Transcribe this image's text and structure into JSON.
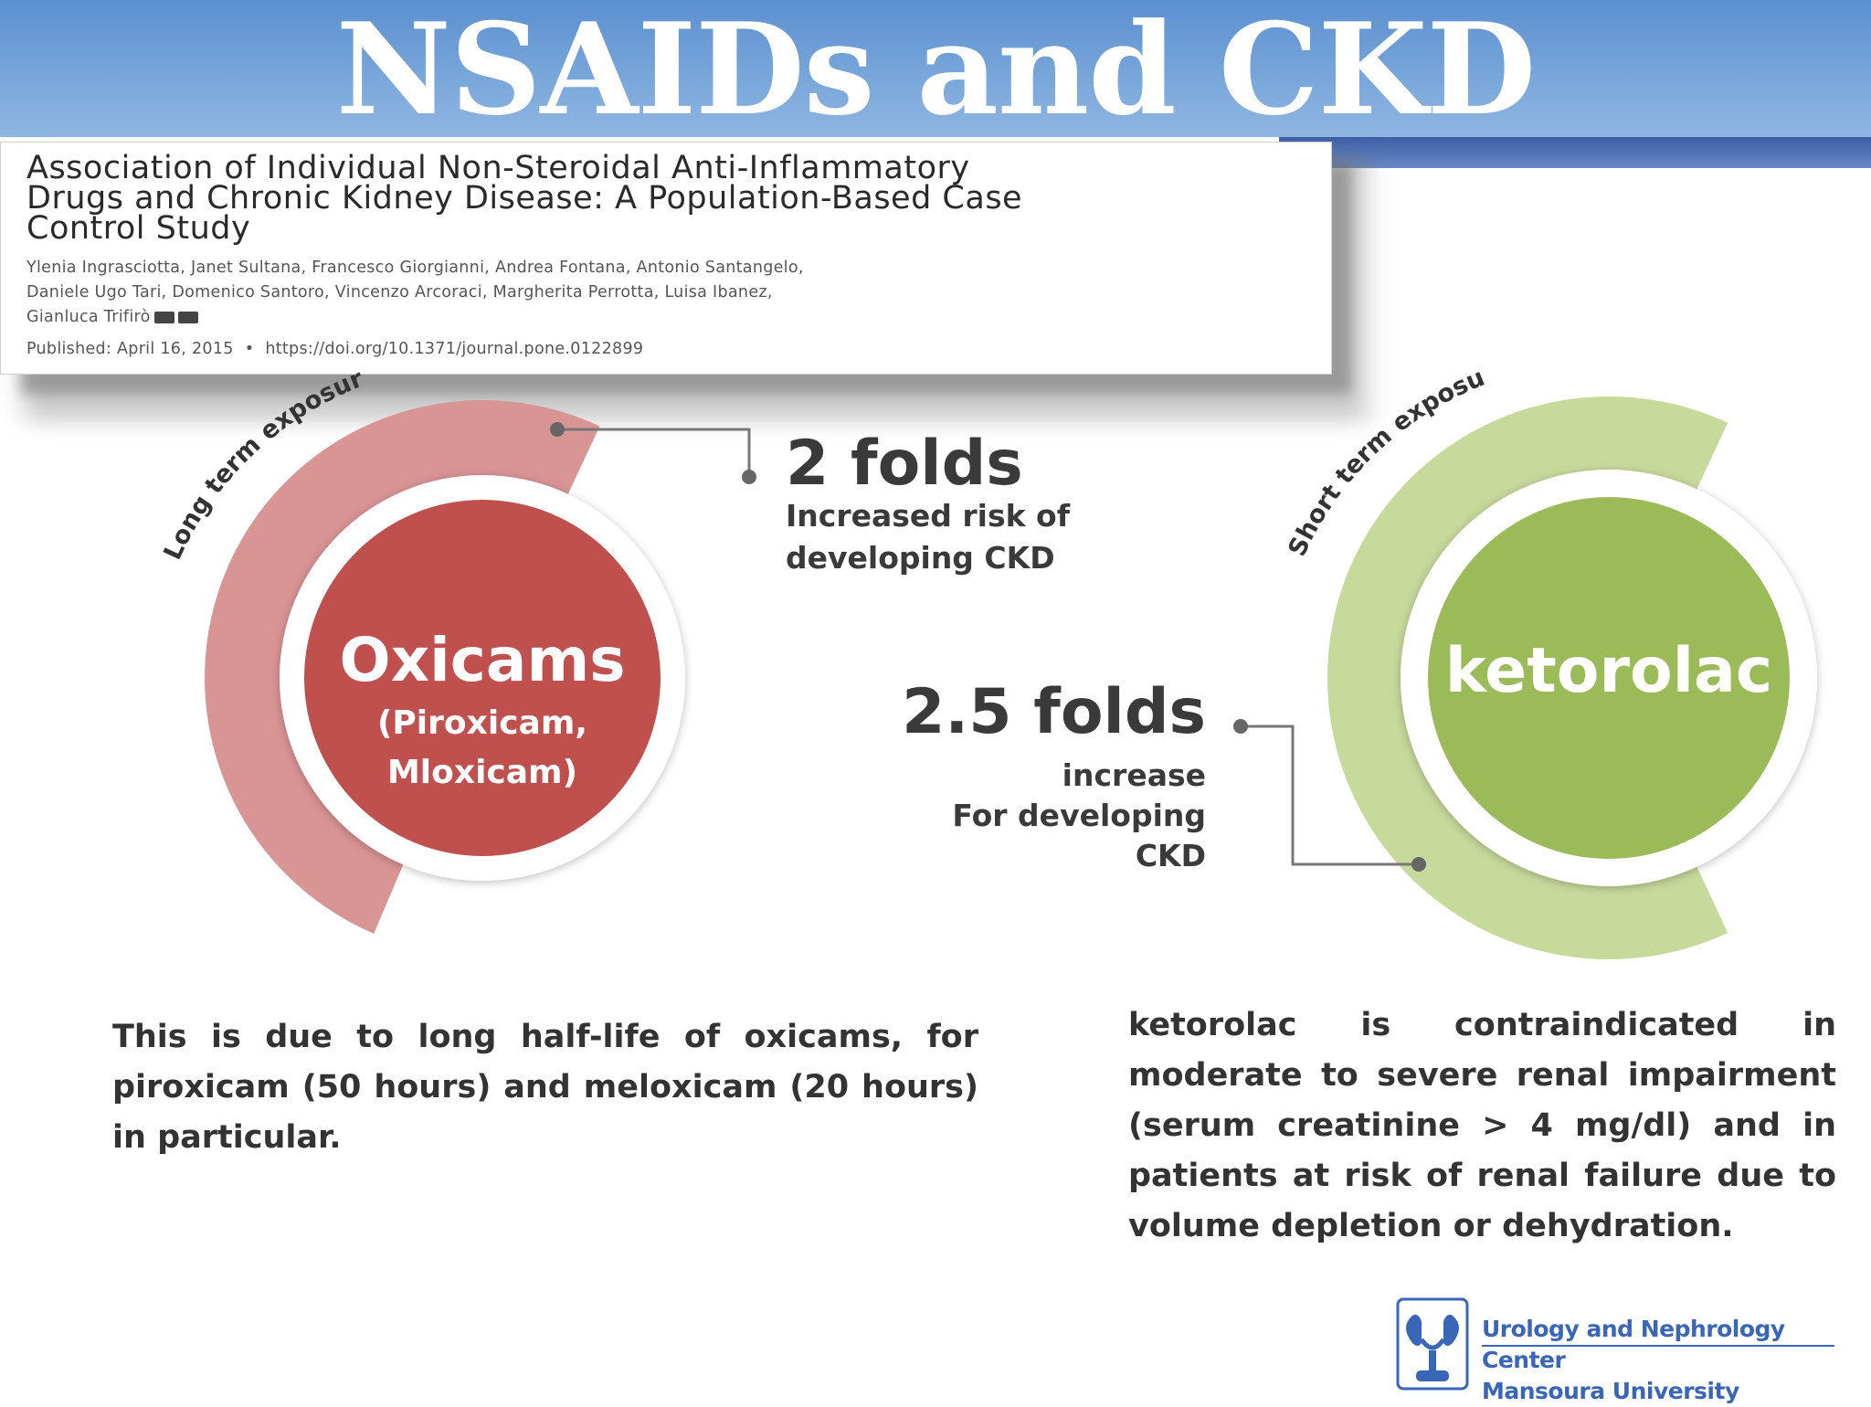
{
  "slide": {
    "title": "NSAIDs and CKD"
  },
  "paper": {
    "title_line1": "Association of Individual Non-Steroidal Anti-Inflammatory",
    "title_line2": "Drugs and Chronic Kidney Disease: A Population-Based Case",
    "title_line3": "Control Study",
    "authors_line1": "Ylenia Ingrasciotta, Janet Sultana, Francesco Giorgianni, Andrea Fontana, Antonio Santangelo,",
    "authors_line2": "Daniele Ugo Tari, Domenico Santoro, Vincenzo Arcoraci, Margherita Perrotta, Luisa Ibanez,",
    "authors_line3": "Gianluca Trifirò",
    "published_date": "Published: April 16, 2015",
    "doi": "https://doi.org/10.1371/journal.pone.0122899"
  },
  "left": {
    "arc_label": "Long term exposure",
    "drug": "Oxicams",
    "examples_line1": "(Piroxicam,",
    "examples_line2": "Mloxicam)",
    "stat_value": "2 folds",
    "stat_line1": "Increased risk of",
    "stat_line2": "developing CKD",
    "arc_color": "#d99494",
    "circle_color": "#c0504d",
    "note": "This is due to long half-life of oxicams, for piroxicam (50 hours) and meloxicam (20 hours) in particular."
  },
  "right": {
    "arc_label": "Short term exposure",
    "drug": "ketorolac",
    "stat_value": "2.5 folds",
    "stat_line1": "increase",
    "stat_line2": "For developing",
    "stat_line3": "CKD",
    "arc_color": "#c8d99c",
    "circle_color": "#9bbb59",
    "note": "ketorolac is contraindicated in moderate to severe renal impairment (serum creatinine > 4 mg/dl) and in patients at risk of renal failure due to volume depletion or dehydration."
  },
  "logo": {
    "line1": "Urology and Nephrology Center",
    "line2": "Mansoura University",
    "color": "#3a66b8"
  }
}
